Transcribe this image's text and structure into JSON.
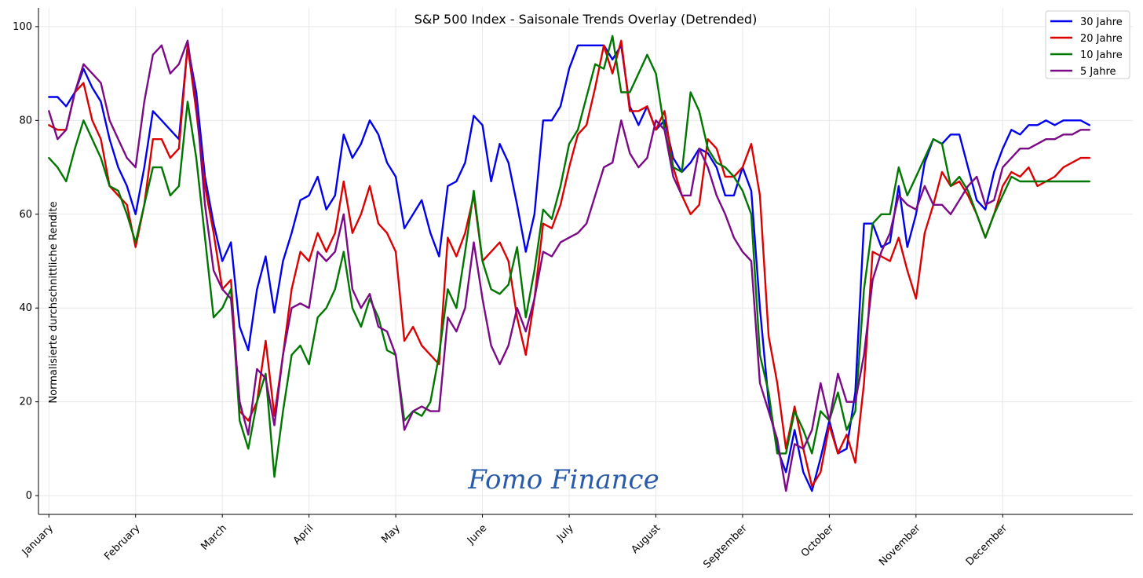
{
  "chart_data": {
    "type": "line",
    "title": "S&P 500 Index - Saisonale Trends Overlay (Detrended)",
    "xlabel": "",
    "ylabel": "Normalisierte durchschnittliche Rendite",
    "ylim": [
      -4,
      104
    ],
    "yticks": [
      0,
      20,
      40,
      60,
      80,
      100
    ],
    "xlim": [
      -0.12,
      12.5
    ],
    "month_ticks": [
      "January",
      "February",
      "March",
      "April",
      "May",
      "June",
      "July",
      "August",
      "September",
      "October",
      "November",
      "December"
    ],
    "grid": true,
    "legend_position": "top-right",
    "watermark": "Fomo Finance",
    "series": [
      {
        "name": "30 Jahre",
        "color": "#0000ee",
        "x": [
          0,
          0.1,
          0.2,
          0.3,
          0.4,
          0.5,
          0.6,
          0.7,
          0.8,
          0.9,
          1.0,
          1.1,
          1.2,
          1.3,
          1.4,
          1.5,
          1.6,
          1.7,
          1.8,
          1.9,
          2.0,
          2.1,
          2.2,
          2.3,
          2.4,
          2.5,
          2.6,
          2.7,
          2.8,
          2.9,
          3.0,
          3.1,
          3.2,
          3.3,
          3.4,
          3.5,
          3.6,
          3.7,
          3.8,
          3.9,
          4.0,
          4.1,
          4.2,
          4.3,
          4.4,
          4.5,
          4.6,
          4.7,
          4.8,
          4.9,
          5.0,
          5.1,
          5.2,
          5.3,
          5.4,
          5.5,
          5.6,
          5.7,
          5.8,
          5.9,
          6.0,
          6.1,
          6.2,
          6.3,
          6.4,
          6.5,
          6.6,
          6.7,
          6.8,
          6.9,
          7.0,
          7.1,
          7.2,
          7.3,
          7.4,
          7.5,
          7.6,
          7.7,
          7.8,
          7.9,
          8.0,
          8.1,
          8.2,
          8.3,
          8.4,
          8.5,
          8.6,
          8.7,
          8.8,
          8.9,
          9.0,
          9.1,
          9.2,
          9.3,
          9.4,
          9.5,
          9.6,
          9.7,
          9.8,
          9.9,
          10.0,
          10.1,
          10.2,
          10.3,
          10.4,
          10.5,
          10.6,
          10.7,
          10.8,
          10.9,
          11.0,
          11.1,
          11.2,
          11.3,
          11.4,
          11.5,
          11.6,
          11.7,
          11.8,
          11.9,
          12.0
        ],
        "values": [
          85,
          85,
          83,
          86,
          91,
          87,
          84,
          76,
          70,
          66,
          60,
          70,
          82,
          80,
          78,
          76,
          96,
          86,
          68,
          58,
          50,
          54,
          36,
          31,
          44,
          51,
          39,
          50,
          56,
          63,
          64,
          68,
          61,
          64,
          77,
          72,
          75,
          80,
          77,
          71,
          68,
          57,
          60,
          63,
          56,
          51,
          66,
          67,
          71,
          81,
          79,
          67,
          75,
          71,
          62,
          52,
          60,
          80,
          80,
          83,
          91,
          96,
          96,
          96,
          96,
          93,
          96,
          83,
          79,
          83,
          78,
          80,
          72,
          69,
          71,
          74,
          73,
          70,
          64,
          64,
          70,
          65,
          40,
          20,
          10,
          5,
          14,
          5,
          1,
          8,
          16,
          9,
          10,
          22,
          58,
          58,
          53,
          54,
          66,
          53,
          60,
          71,
          76,
          75,
          77,
          77,
          70,
          63,
          61,
          69,
          74,
          78,
          77,
          79,
          79,
          80,
          79,
          80,
          80,
          80,
          79
        ]
      },
      {
        "name": "20 Jahre",
        "color": "#dd0000",
        "x": [
          0,
          0.1,
          0.2,
          0.3,
          0.4,
          0.5,
          0.6,
          0.7,
          0.8,
          0.9,
          1.0,
          1.1,
          1.2,
          1.3,
          1.4,
          1.5,
          1.6,
          1.7,
          1.8,
          1.9,
          2.0,
          2.1,
          2.2,
          2.3,
          2.4,
          2.5,
          2.6,
          2.7,
          2.8,
          2.9,
          3.0,
          3.1,
          3.2,
          3.3,
          3.4,
          3.5,
          3.6,
          3.7,
          3.8,
          3.9,
          4.0,
          4.1,
          4.2,
          4.3,
          4.4,
          4.5,
          4.6,
          4.7,
          4.8,
          4.9,
          5.0,
          5.1,
          5.2,
          5.3,
          5.4,
          5.5,
          5.6,
          5.7,
          5.8,
          5.9,
          6.0,
          6.1,
          6.2,
          6.3,
          6.4,
          6.5,
          6.6,
          6.7,
          6.8,
          6.9,
          7.0,
          7.1,
          7.2,
          7.3,
          7.4,
          7.5,
          7.6,
          7.7,
          7.8,
          7.9,
          8.0,
          8.1,
          8.2,
          8.3,
          8.4,
          8.5,
          8.6,
          8.7,
          8.8,
          8.9,
          9.0,
          9.1,
          9.2,
          9.3,
          9.4,
          9.5,
          9.6,
          9.7,
          9.8,
          9.9,
          10.0,
          10.1,
          10.2,
          10.3,
          10.4,
          10.5,
          10.6,
          10.7,
          10.8,
          10.9,
          11.0,
          11.1,
          11.2,
          11.3,
          11.4,
          11.5,
          11.6,
          11.7,
          11.8,
          11.9,
          12.0
        ],
        "values": [
          79,
          78,
          78,
          86,
          88,
          80,
          76,
          66,
          64,
          62,
          53,
          62,
          76,
          76,
          72,
          74,
          96,
          82,
          66,
          56,
          44,
          46,
          18,
          16,
          20,
          33,
          17,
          30,
          44,
          52,
          50,
          56,
          52,
          56,
          67,
          56,
          60,
          66,
          58,
          56,
          52,
          33,
          36,
          32,
          30,
          28,
          55,
          51,
          56,
          64,
          50,
          52,
          54,
          50,
          38,
          30,
          42,
          58,
          57,
          62,
          70,
          77,
          79,
          87,
          96,
          90,
          97,
          82,
          82,
          83,
          78,
          82,
          70,
          64,
          60,
          62,
          76,
          74,
          68,
          68,
          70,
          75,
          64,
          34,
          24,
          10,
          19,
          10,
          2,
          5,
          15,
          9,
          13,
          7,
          24,
          52,
          51,
          50,
          55,
          48,
          42,
          56,
          62,
          69,
          66,
          67,
          64,
          60,
          55,
          60,
          66,
          69,
          68,
          70,
          66,
          67,
          68,
          70,
          71,
          72,
          72
        ]
      },
      {
        "name": "10 Jahre",
        "color": "#007700",
        "x": [
          0,
          0.1,
          0.2,
          0.3,
          0.4,
          0.5,
          0.6,
          0.7,
          0.8,
          0.9,
          1.0,
          1.1,
          1.2,
          1.3,
          1.4,
          1.5,
          1.6,
          1.7,
          1.8,
          1.9,
          2.0,
          2.1,
          2.2,
          2.3,
          2.4,
          2.5,
          2.6,
          2.7,
          2.8,
          2.9,
          3.0,
          3.1,
          3.2,
          3.3,
          3.4,
          3.5,
          3.6,
          3.7,
          3.8,
          3.9,
          4.0,
          4.1,
          4.2,
          4.3,
          4.4,
          4.5,
          4.6,
          4.7,
          4.8,
          4.9,
          5.0,
          5.1,
          5.2,
          5.3,
          5.4,
          5.5,
          5.6,
          5.7,
          5.8,
          5.9,
          6.0,
          6.1,
          6.2,
          6.3,
          6.4,
          6.5,
          6.6,
          6.7,
          6.8,
          6.9,
          7.0,
          7.1,
          7.2,
          7.3,
          7.4,
          7.5,
          7.6,
          7.7,
          7.8,
          7.9,
          8.0,
          8.1,
          8.2,
          8.3,
          8.4,
          8.5,
          8.6,
          8.7,
          8.8,
          8.9,
          9.0,
          9.1,
          9.2,
          9.3,
          9.4,
          9.5,
          9.6,
          9.7,
          9.8,
          9.9,
          10.0,
          10.1,
          10.2,
          10.3,
          10.4,
          10.5,
          10.6,
          10.7,
          10.8,
          10.9,
          11.0,
          11.1,
          11.2,
          11.3,
          11.4,
          11.5,
          11.6,
          11.7,
          11.8,
          11.9,
          12.0
        ],
        "values": [
          72,
          70,
          67,
          74,
          80,
          76,
          72,
          66,
          65,
          60,
          54,
          62,
          70,
          70,
          64,
          66,
          84,
          72,
          55,
          38,
          40,
          44,
          16,
          10,
          20,
          26,
          4,
          18,
          30,
          32,
          28,
          38,
          40,
          44,
          52,
          40,
          36,
          42,
          38,
          31,
          30,
          16,
          18,
          17,
          20,
          30,
          44,
          40,
          52,
          65,
          50,
          44,
          43,
          45,
          53,
          38,
          48,
          61,
          59,
          66,
          75,
          78,
          85,
          92,
          91,
          98,
          86,
          86,
          90,
          94,
          90,
          78,
          70,
          69,
          86,
          82,
          74,
          71,
          70,
          68,
          65,
          60,
          30,
          22,
          9,
          9,
          18,
          14,
          9,
          18,
          16,
          22,
          14,
          18,
          44,
          58,
          60,
          60,
          70,
          64,
          68,
          72,
          76,
          75,
          66,
          68,
          65,
          60,
          55,
          60,
          64,
          68,
          67,
          67,
          67,
          67,
          67,
          67,
          67,
          67,
          67
        ]
      },
      {
        "name": "5 Jahre",
        "color": "#7a0a86",
        "x": [
          0,
          0.1,
          0.2,
          0.3,
          0.4,
          0.5,
          0.6,
          0.7,
          0.8,
          0.9,
          1.0,
          1.1,
          1.2,
          1.3,
          1.4,
          1.5,
          1.6,
          1.7,
          1.8,
          1.9,
          2.0,
          2.1,
          2.2,
          2.3,
          2.4,
          2.5,
          2.6,
          2.7,
          2.8,
          2.9,
          3.0,
          3.1,
          3.2,
          3.3,
          3.4,
          3.5,
          3.6,
          3.7,
          3.8,
          3.9,
          4.0,
          4.1,
          4.2,
          4.3,
          4.4,
          4.5,
          4.6,
          4.7,
          4.8,
          4.9,
          5.0,
          5.1,
          5.2,
          5.3,
          5.4,
          5.5,
          5.6,
          5.7,
          5.8,
          5.9,
          6.0,
          6.1,
          6.2,
          6.3,
          6.4,
          6.5,
          6.6,
          6.7,
          6.8,
          6.9,
          7.0,
          7.1,
          7.2,
          7.3,
          7.4,
          7.5,
          7.6,
          7.7,
          7.8,
          7.9,
          8.0,
          8.1,
          8.2,
          8.3,
          8.4,
          8.5,
          8.6,
          8.7,
          8.8,
          8.9,
          9.0,
          9.1,
          9.2,
          9.3,
          9.4,
          9.5,
          9.6,
          9.7,
          9.8,
          9.9,
          10.0,
          10.1,
          10.2,
          10.3,
          10.4,
          10.5,
          10.6,
          10.7,
          10.8,
          10.9,
          11.0,
          11.1,
          11.2,
          11.3,
          11.4,
          11.5,
          11.6,
          11.7,
          11.8,
          11.9,
          12.0
        ],
        "values": [
          82,
          76,
          78,
          86,
          92,
          90,
          88,
          80,
          76,
          72,
          70,
          84,
          94,
          96,
          90,
          92,
          97,
          84,
          62,
          48,
          44,
          42,
          20,
          13,
          27,
          25,
          15,
          30,
          40,
          41,
          40,
          52,
          50,
          52,
          60,
          44,
          40,
          43,
          36,
          35,
          30,
          14,
          18,
          19,
          18,
          18,
          38,
          35,
          40,
          54,
          42,
          32,
          28,
          32,
          40,
          35,
          42,
          52,
          51,
          54,
          55,
          56,
          58,
          64,
          70,
          71,
          80,
          73,
          70,
          72,
          80,
          78,
          68,
          64,
          64,
          74,
          70,
          64,
          60,
          55,
          52,
          50,
          24,
          18,
          12,
          1,
          11,
          10,
          14,
          24,
          16,
          26,
          20,
          20,
          30,
          46,
          52,
          56,
          64,
          62,
          61,
          66,
          62,
          62,
          60,
          63,
          66,
          68,
          62,
          63,
          70,
          72,
          74,
          74,
          75,
          76,
          76,
          77,
          77,
          78,
          78
        ]
      }
    ]
  }
}
